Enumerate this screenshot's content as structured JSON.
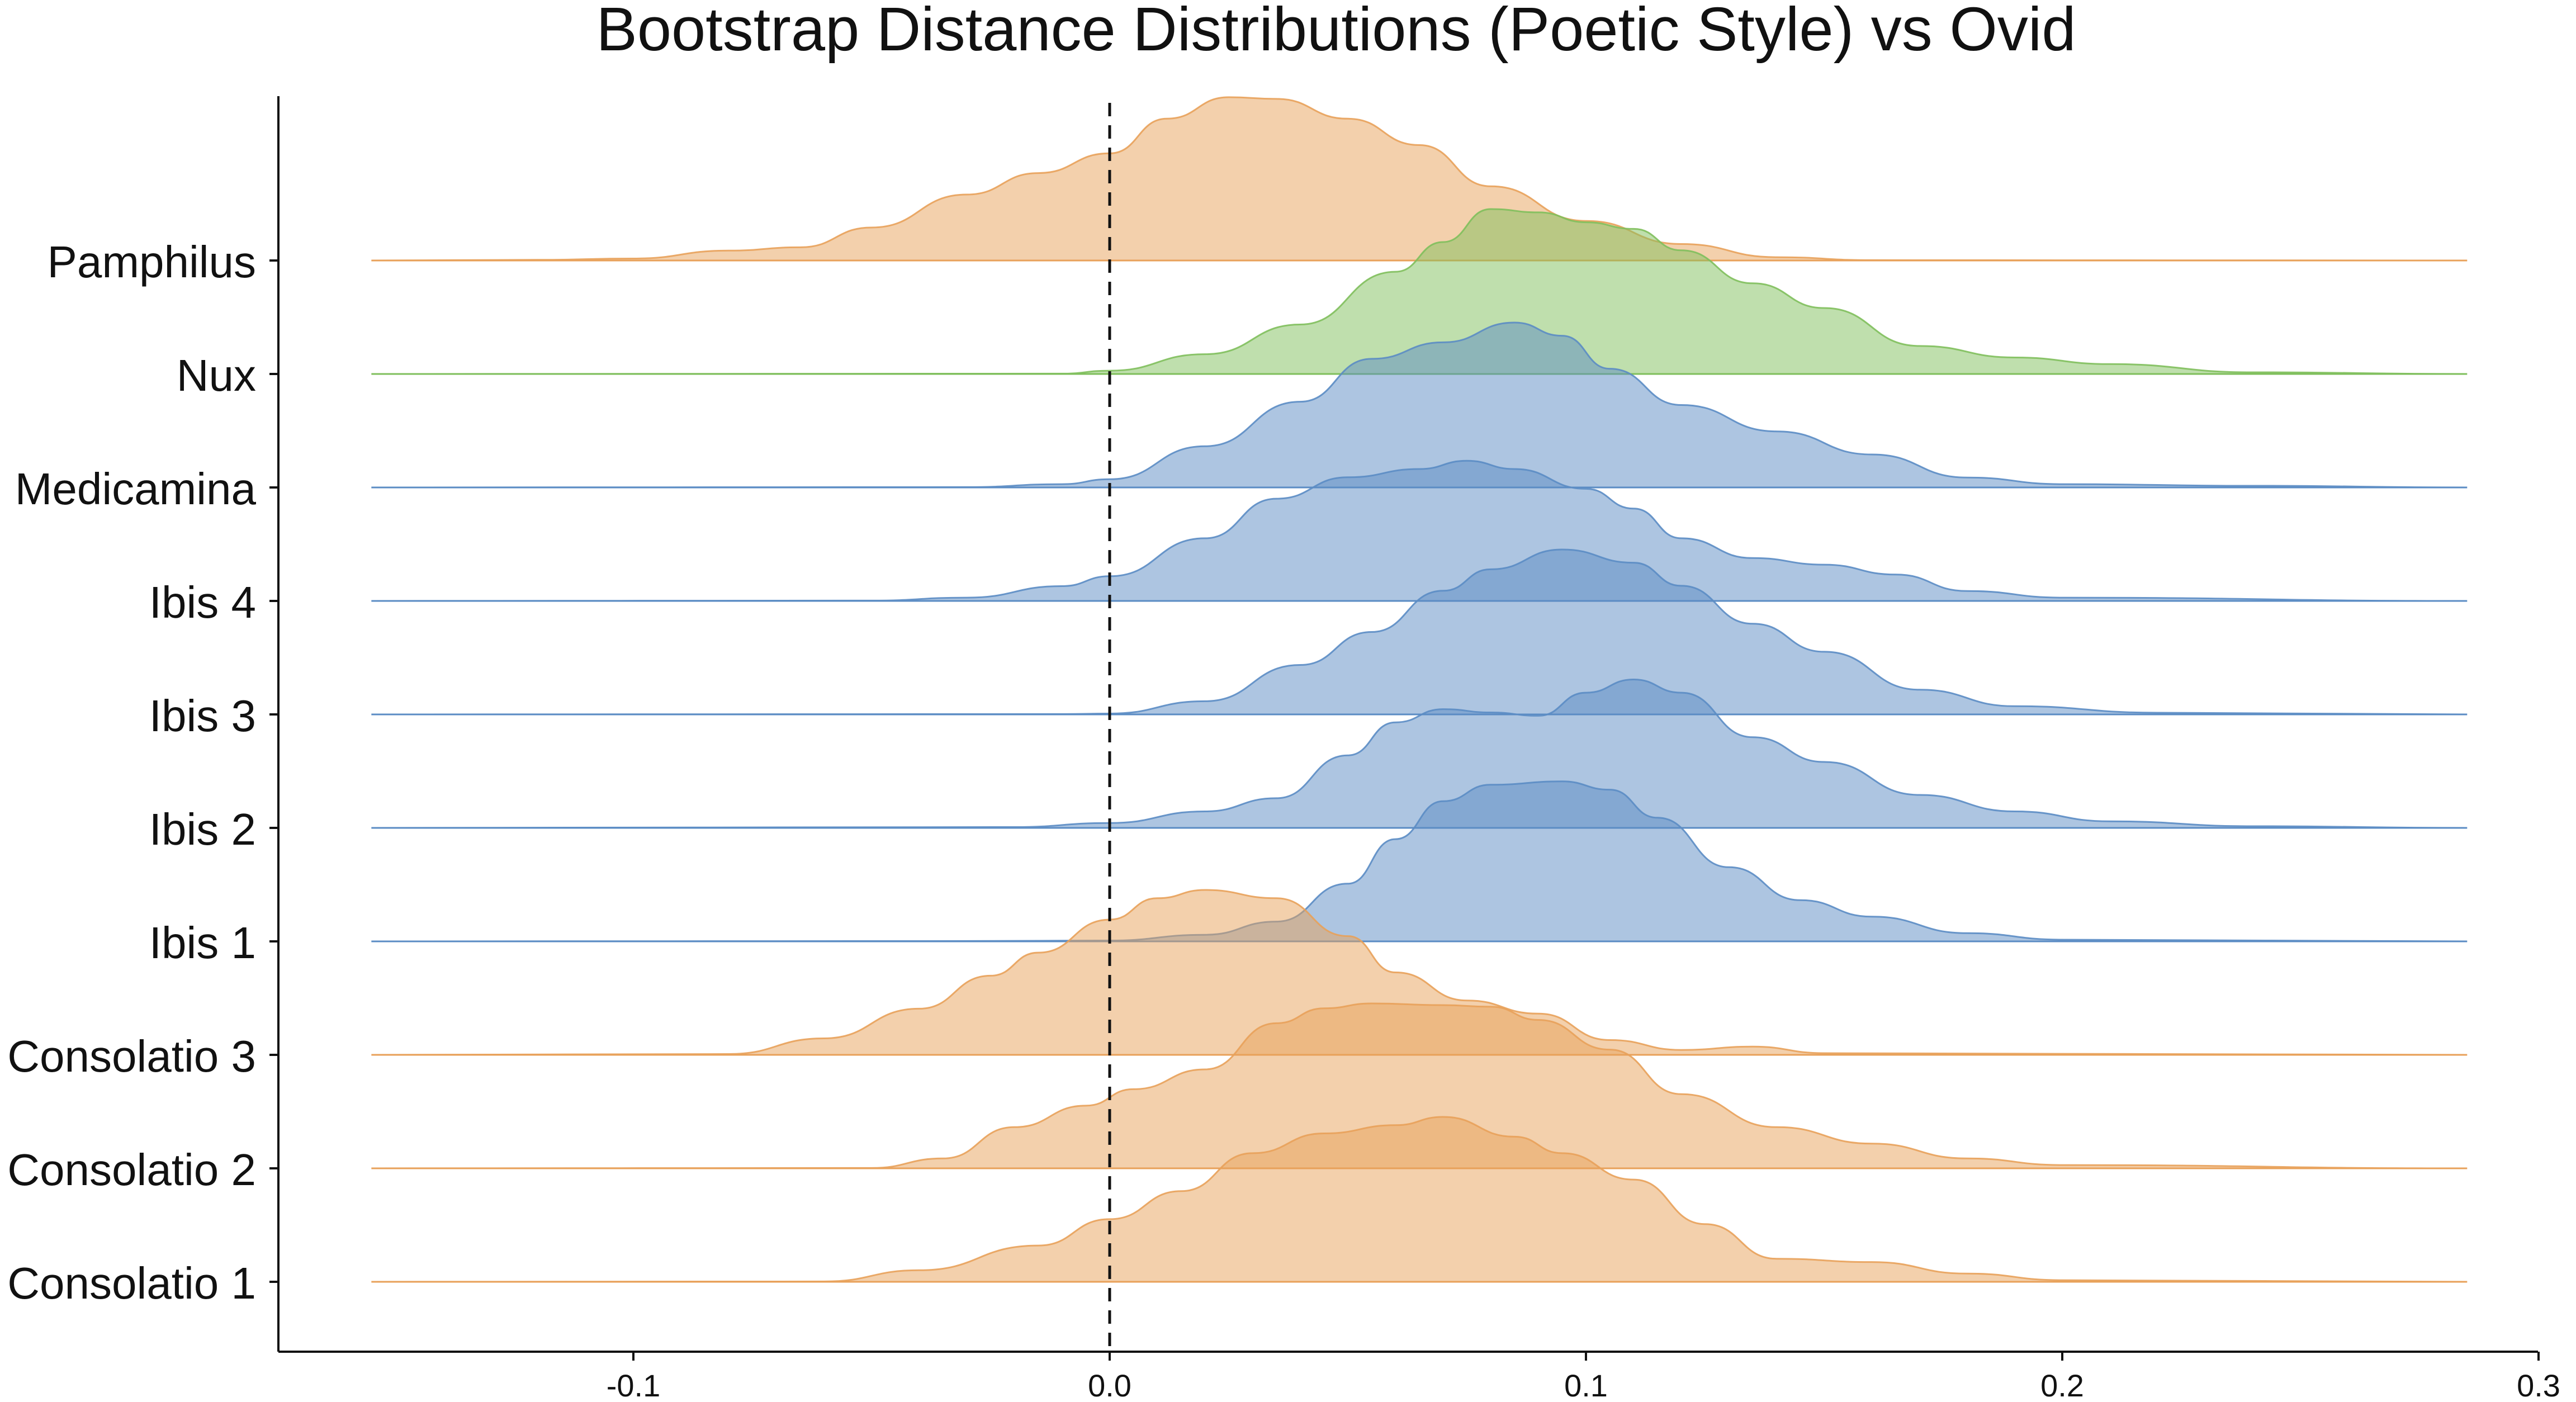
{
  "chart_data": {
    "type": "ridgeline",
    "title": "Bootstrap Distance Distributions (Poetic Style) vs Ovid",
    "xlabel": "",
    "ylabel": "",
    "xlim": [
      -0.175,
      0.3
    ],
    "x_ticks": [
      {
        "value": -0.1,
        "label": "-0.1"
      },
      {
        "value": 0.0,
        "label": "0.0"
      },
      {
        "value": 0.1,
        "label": "0.1"
      },
      {
        "value": 0.2,
        "label": "0.2"
      },
      {
        "value": 0.3,
        "label": "0.3"
      }
    ],
    "reference_line": {
      "x": 0.0,
      "style": "dashed"
    },
    "grid": false,
    "colors": {
      "orange": "#e8a15a",
      "green": "#7fbf5c",
      "blue": "#5b8cc4"
    },
    "rows": [
      {
        "name": "Pamphilus",
        "color": "orange",
        "density": [
          [
            -0.155,
            0
          ],
          [
            -0.12,
            0.004
          ],
          [
            -0.1,
            0.012
          ],
          [
            -0.08,
            0.06
          ],
          [
            -0.065,
            0.08
          ],
          [
            -0.05,
            0.2
          ],
          [
            -0.03,
            0.4
          ],
          [
            -0.015,
            0.53
          ],
          [
            0.0,
            0.65
          ],
          [
            0.012,
            0.86
          ],
          [
            0.025,
            0.99
          ],
          [
            0.035,
            0.98
          ],
          [
            0.05,
            0.86
          ],
          [
            0.065,
            0.7
          ],
          [
            0.08,
            0.45
          ],
          [
            0.1,
            0.24
          ],
          [
            0.12,
            0.1
          ],
          [
            0.14,
            0.02
          ],
          [
            0.16,
            0.002
          ],
          [
            0.285,
            0
          ]
        ]
      },
      {
        "name": "Nux",
        "color": "green",
        "density": [
          [
            -0.155,
            0
          ],
          [
            -0.01,
            0.002
          ],
          [
            0.0,
            0.02
          ],
          [
            0.02,
            0.12
          ],
          [
            0.04,
            0.3
          ],
          [
            0.06,
            0.62
          ],
          [
            0.07,
            0.8
          ],
          [
            0.08,
            1.0
          ],
          [
            0.09,
            0.98
          ],
          [
            0.1,
            0.92
          ],
          [
            0.11,
            0.88
          ],
          [
            0.12,
            0.75
          ],
          [
            0.135,
            0.55
          ],
          [
            0.15,
            0.4
          ],
          [
            0.17,
            0.17
          ],
          [
            0.19,
            0.1
          ],
          [
            0.21,
            0.06
          ],
          [
            0.24,
            0.01
          ],
          [
            0.285,
            0
          ]
        ]
      },
      {
        "name": "Medicamina",
        "color": "blue",
        "density": [
          [
            -0.155,
            0
          ],
          [
            -0.03,
            0.002
          ],
          [
            -0.01,
            0.02
          ],
          [
            0.0,
            0.05
          ],
          [
            0.02,
            0.25
          ],
          [
            0.04,
            0.52
          ],
          [
            0.055,
            0.78
          ],
          [
            0.07,
            0.88
          ],
          [
            0.085,
            1.0
          ],
          [
            0.095,
            0.92
          ],
          [
            0.105,
            0.72
          ],
          [
            0.12,
            0.5
          ],
          [
            0.14,
            0.34
          ],
          [
            0.16,
            0.2
          ],
          [
            0.18,
            0.06
          ],
          [
            0.2,
            0.02
          ],
          [
            0.24,
            0.01
          ],
          [
            0.285,
            0
          ]
        ]
      },
      {
        "name": "Ibis 4",
        "color": "blue",
        "density": [
          [
            -0.155,
            0
          ],
          [
            -0.05,
            0.002
          ],
          [
            -0.03,
            0.02
          ],
          [
            -0.01,
            0.09
          ],
          [
            0.0,
            0.15
          ],
          [
            0.02,
            0.38
          ],
          [
            0.035,
            0.62
          ],
          [
            0.05,
            0.75
          ],
          [
            0.065,
            0.8
          ],
          [
            0.075,
            0.85
          ],
          [
            0.085,
            0.8
          ],
          [
            0.1,
            0.68
          ],
          [
            0.11,
            0.56
          ],
          [
            0.12,
            0.38
          ],
          [
            0.135,
            0.26
          ],
          [
            0.15,
            0.22
          ],
          [
            0.165,
            0.16
          ],
          [
            0.18,
            0.06
          ],
          [
            0.2,
            0.02
          ],
          [
            0.285,
            0
          ]
        ]
      },
      {
        "name": "Ibis 3",
        "color": "blue",
        "density": [
          [
            -0.155,
            0
          ],
          [
            -0.01,
            0.002
          ],
          [
            0.0,
            0.005
          ],
          [
            0.02,
            0.08
          ],
          [
            0.04,
            0.3
          ],
          [
            0.055,
            0.5
          ],
          [
            0.07,
            0.75
          ],
          [
            0.08,
            0.88
          ],
          [
            0.095,
            1.0
          ],
          [
            0.11,
            0.92
          ],
          [
            0.12,
            0.78
          ],
          [
            0.135,
            0.55
          ],
          [
            0.15,
            0.38
          ],
          [
            0.17,
            0.15
          ],
          [
            0.19,
            0.05
          ],
          [
            0.22,
            0.01
          ],
          [
            0.285,
            0
          ]
        ]
      },
      {
        "name": "Ibis 2",
        "color": "blue",
        "density": [
          [
            -0.155,
            0
          ],
          [
            -0.02,
            0.005
          ],
          [
            0.0,
            0.03
          ],
          [
            0.02,
            0.1
          ],
          [
            0.035,
            0.18
          ],
          [
            0.05,
            0.44
          ],
          [
            0.06,
            0.64
          ],
          [
            0.07,
            0.72
          ],
          [
            0.08,
            0.7
          ],
          [
            0.09,
            0.68
          ],
          [
            0.1,
            0.82
          ],
          [
            0.11,
            0.9
          ],
          [
            0.12,
            0.82
          ],
          [
            0.135,
            0.55
          ],
          [
            0.15,
            0.4
          ],
          [
            0.17,
            0.2
          ],
          [
            0.19,
            0.1
          ],
          [
            0.21,
            0.04
          ],
          [
            0.24,
            0.01
          ],
          [
            0.285,
            0
          ]
        ]
      },
      {
        "name": "Ibis 1",
        "color": "blue",
        "density": [
          [
            -0.155,
            0
          ],
          [
            -0.03,
            0.002
          ],
          [
            0.0,
            0.005
          ],
          [
            0.02,
            0.04
          ],
          [
            0.035,
            0.12
          ],
          [
            0.05,
            0.35
          ],
          [
            0.06,
            0.62
          ],
          [
            0.07,
            0.85
          ],
          [
            0.08,
            0.95
          ],
          [
            0.095,
            0.97
          ],
          [
            0.105,
            0.92
          ],
          [
            0.115,
            0.75
          ],
          [
            0.13,
            0.45
          ],
          [
            0.145,
            0.25
          ],
          [
            0.16,
            0.15
          ],
          [
            0.18,
            0.05
          ],
          [
            0.2,
            0.01
          ],
          [
            0.285,
            0
          ]
        ]
      },
      {
        "name": "Consolatio 3",
        "color": "orange",
        "density": [
          [
            -0.155,
            0
          ],
          [
            -0.08,
            0.005
          ],
          [
            -0.06,
            0.1
          ],
          [
            -0.04,
            0.28
          ],
          [
            -0.025,
            0.48
          ],
          [
            -0.015,
            0.62
          ],
          [
            0.0,
            0.82
          ],
          [
            0.01,
            0.95
          ],
          [
            0.02,
            1.0
          ],
          [
            0.035,
            0.95
          ],
          [
            0.05,
            0.72
          ],
          [
            0.06,
            0.5
          ],
          [
            0.075,
            0.33
          ],
          [
            0.09,
            0.25
          ],
          [
            0.105,
            0.09
          ],
          [
            0.12,
            0.03
          ],
          [
            0.135,
            0.05
          ],
          [
            0.15,
            0.01
          ],
          [
            0.285,
            0
          ]
        ]
      },
      {
        "name": "Consolatio 2",
        "color": "orange",
        "density": [
          [
            -0.155,
            0
          ],
          [
            -0.05,
            0.002
          ],
          [
            -0.035,
            0.06
          ],
          [
            -0.02,
            0.25
          ],
          [
            -0.005,
            0.38
          ],
          [
            0.005,
            0.48
          ],
          [
            0.02,
            0.6
          ],
          [
            0.035,
            0.88
          ],
          [
            0.045,
            0.97
          ],
          [
            0.055,
            1.0
          ],
          [
            0.07,
            0.99
          ],
          [
            0.08,
            0.98
          ],
          [
            0.09,
            0.9
          ],
          [
            0.105,
            0.72
          ],
          [
            0.12,
            0.45
          ],
          [
            0.14,
            0.25
          ],
          [
            0.16,
            0.15
          ],
          [
            0.18,
            0.06
          ],
          [
            0.2,
            0.02
          ],
          [
            0.285,
            0
          ]
        ]
      },
      {
        "name": "Consolatio 1",
        "color": "orange",
        "density": [
          [
            -0.155,
            0
          ],
          [
            -0.06,
            0.002
          ],
          [
            -0.04,
            0.07
          ],
          [
            -0.015,
            0.22
          ],
          [
            0.0,
            0.38
          ],
          [
            0.015,
            0.55
          ],
          [
            0.03,
            0.78
          ],
          [
            0.045,
            0.9
          ],
          [
            0.06,
            0.95
          ],
          [
            0.07,
            1.0
          ],
          [
            0.085,
            0.88
          ],
          [
            0.095,
            0.78
          ],
          [
            0.11,
            0.62
          ],
          [
            0.125,
            0.35
          ],
          [
            0.14,
            0.14
          ],
          [
            0.16,
            0.12
          ],
          [
            0.18,
            0.05
          ],
          [
            0.2,
            0.01
          ],
          [
            0.285,
            0
          ]
        ]
      }
    ]
  }
}
